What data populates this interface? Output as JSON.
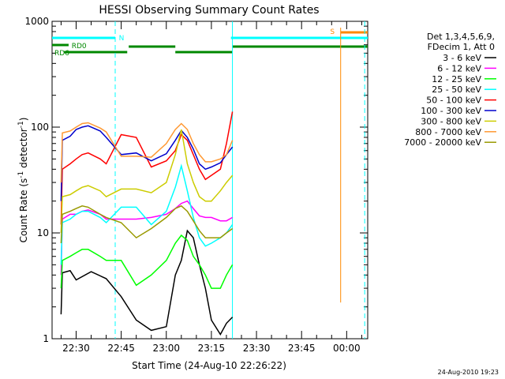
{
  "chart_data": {
    "type": "line",
    "title": "HESSI Observing Summary Count Rates",
    "xlabel": "Start Time (24-Aug-10 22:26:22)",
    "ylabel": "Count Rate (s⁻¹ detector⁻¹)",
    "ylabel_parts": [
      "Count Rate (s",
      "-1",
      " detector",
      "-1",
      ")"
    ],
    "yscale": "log",
    "ylim": [
      1,
      1000
    ],
    "y_ticks": [
      1,
      10,
      100,
      1000
    ],
    "y_tick_labels": [
      "1",
      "10",
      "100",
      "1000"
    ],
    "x_ticks_min": [
      0,
      15,
      30,
      45,
      60,
      75,
      90
    ],
    "x_tick_labels": [
      "22:30",
      "22:45",
      "23:00",
      "23:15",
      "23:30",
      "23:45",
      "00:00"
    ],
    "x_range_min": [
      -8,
      97
    ],
    "legend_header": [
      "Det 1,3,4,5,6,9,",
      "FDecim 1, Att 0"
    ],
    "series": [
      {
        "name": "3 - 6 keV",
        "color": "#000000",
        "points": [
          [
            -5,
            1.7
          ],
          [
            -4.6,
            4.2
          ],
          [
            -2,
            4.4
          ],
          [
            0,
            3.6
          ],
          [
            5,
            4.3
          ],
          [
            10,
            3.7
          ],
          [
            15,
            2.5
          ],
          [
            20,
            1.5
          ],
          [
            25,
            1.2
          ],
          [
            30,
            1.3
          ],
          [
            33,
            4
          ],
          [
            35,
            5.5
          ],
          [
            37,
            10.5
          ],
          [
            39,
            9
          ],
          [
            41,
            5
          ],
          [
            43,
            3
          ],
          [
            45,
            1.5
          ],
          [
            48,
            1.1
          ],
          [
            50,
            1.4
          ],
          [
            52,
            1.6
          ]
        ]
      },
      {
        "name": "6 - 12 keV",
        "color": "#ff00ff",
        "points": [
          [
            -5,
            4
          ],
          [
            -4.6,
            13.5
          ],
          [
            -2,
            15
          ],
          [
            0,
            15
          ],
          [
            2,
            16
          ],
          [
            4,
            16.5
          ],
          [
            8,
            15
          ],
          [
            10,
            13.5
          ],
          [
            15,
            13.5
          ],
          [
            20,
            13.5
          ],
          [
            25,
            14
          ],
          [
            30,
            15
          ],
          [
            33,
            17
          ],
          [
            35,
            19
          ],
          [
            37,
            20
          ],
          [
            39,
            17
          ],
          [
            41,
            14.5
          ],
          [
            43,
            14
          ],
          [
            45,
            14
          ],
          [
            48,
            13
          ],
          [
            50,
            13
          ],
          [
            52,
            14
          ]
        ]
      },
      {
        "name": "12 - 25 keV",
        "color": "#00ff00",
        "points": [
          [
            -5,
            3
          ],
          [
            -4.6,
            5.5
          ],
          [
            -2,
            6
          ],
          [
            0,
            6.5
          ],
          [
            2,
            7
          ],
          [
            4,
            7
          ],
          [
            8,
            6
          ],
          [
            10,
            5.5
          ],
          [
            15,
            5.5
          ],
          [
            20,
            3.2
          ],
          [
            25,
            4
          ],
          [
            30,
            5.5
          ],
          [
            33,
            8
          ],
          [
            35,
            9.5
          ],
          [
            37,
            8.5
          ],
          [
            39,
            6
          ],
          [
            41,
            5
          ],
          [
            43,
            4
          ],
          [
            45,
            3
          ],
          [
            48,
            3
          ],
          [
            50,
            4
          ],
          [
            52,
            5
          ]
        ]
      },
      {
        "name": "25 - 50 keV",
        "color": "#00ffff",
        "points": [
          [
            -5,
            5
          ],
          [
            -4.6,
            12.5
          ],
          [
            -2,
            13.5
          ],
          [
            0,
            15
          ],
          [
            2,
            16
          ],
          [
            4,
            16
          ],
          [
            8,
            14
          ],
          [
            10,
            12.5
          ],
          [
            15,
            17.5
          ],
          [
            20,
            17.5
          ],
          [
            25,
            12
          ],
          [
            30,
            16
          ],
          [
            33,
            27
          ],
          [
            35,
            43
          ],
          [
            37,
            25
          ],
          [
            39,
            14
          ],
          [
            41,
            9
          ],
          [
            43,
            7.5
          ],
          [
            45,
            8
          ],
          [
            48,
            9
          ],
          [
            50,
            10
          ],
          [
            52,
            12
          ]
        ]
      },
      {
        "name": "50 - 100 keV",
        "color": "#ff0000",
        "points": [
          [
            -5,
            12
          ],
          [
            -4.6,
            40
          ],
          [
            -2,
            45
          ],
          [
            0,
            50
          ],
          [
            2,
            55
          ],
          [
            4,
            57
          ],
          [
            8,
            50
          ],
          [
            10,
            45
          ],
          [
            15,
            85
          ],
          [
            20,
            80
          ],
          [
            25,
            42
          ],
          [
            30,
            48
          ],
          [
            33,
            60
          ],
          [
            35,
            85
          ],
          [
            37,
            75
          ],
          [
            39,
            55
          ],
          [
            41,
            40
          ],
          [
            43,
            32
          ],
          [
            45,
            35
          ],
          [
            48,
            40
          ],
          [
            50,
            70
          ],
          [
            52,
            140
          ]
        ]
      },
      {
        "name": "100 - 300 keV",
        "color": "#0000cc",
        "points": [
          [
            -5,
            20
          ],
          [
            -4.6,
            75
          ],
          [
            -2,
            82
          ],
          [
            0,
            95
          ],
          [
            2,
            100
          ],
          [
            4,
            103
          ],
          [
            8,
            92
          ],
          [
            10,
            80
          ],
          [
            15,
            55
          ],
          [
            20,
            57
          ],
          [
            25,
            48
          ],
          [
            30,
            56
          ],
          [
            33,
            75
          ],
          [
            35,
            93
          ],
          [
            37,
            80
          ],
          [
            39,
            62
          ],
          [
            41,
            45
          ],
          [
            43,
            40
          ],
          [
            45,
            42
          ],
          [
            48,
            46
          ],
          [
            50,
            55
          ],
          [
            52,
            65
          ]
        ]
      },
      {
        "name": "300 - 800 keV",
        "color": "#cccc00",
        "points": [
          [
            -5,
            10
          ],
          [
            -4.6,
            22
          ],
          [
            -2,
            23
          ],
          [
            0,
            25
          ],
          [
            2,
            27
          ],
          [
            4,
            28
          ],
          [
            8,
            25
          ],
          [
            10,
            22
          ],
          [
            15,
            26
          ],
          [
            20,
            26
          ],
          [
            25,
            24
          ],
          [
            30,
            30
          ],
          [
            33,
            55
          ],
          [
            35,
            95
          ],
          [
            37,
            45
          ],
          [
            39,
            30
          ],
          [
            41,
            22
          ],
          [
            43,
            20
          ],
          [
            45,
            20
          ],
          [
            48,
            25
          ],
          [
            50,
            30
          ],
          [
            52,
            35
          ]
        ]
      },
      {
        "name": "800 - 7000 keV",
        "color": "#ff9933",
        "points": [
          [
            -5,
            30
          ],
          [
            -4.6,
            88
          ],
          [
            -2,
            92
          ],
          [
            0,
            100
          ],
          [
            2,
            108
          ],
          [
            4,
            110
          ],
          [
            8,
            98
          ],
          [
            10,
            90
          ],
          [
            15,
            53
          ],
          [
            20,
            53
          ],
          [
            25,
            52
          ],
          [
            30,
            70
          ],
          [
            33,
            95
          ],
          [
            35,
            108
          ],
          [
            37,
            95
          ],
          [
            39,
            70
          ],
          [
            41,
            55
          ],
          [
            43,
            47
          ],
          [
            45,
            47
          ],
          [
            48,
            50
          ],
          [
            50,
            55
          ],
          [
            52,
            75
          ]
        ]
      },
      {
        "name": "7000 - 20000 keV",
        "color": "#999900",
        "points": [
          [
            -5,
            8
          ],
          [
            -4.6,
            15
          ],
          [
            -2,
            16
          ],
          [
            0,
            17
          ],
          [
            2,
            18
          ],
          [
            4,
            17.5
          ],
          [
            8,
            15
          ],
          [
            10,
            14
          ],
          [
            15,
            12.5
          ],
          [
            20,
            9
          ],
          [
            25,
            11
          ],
          [
            30,
            14
          ],
          [
            33,
            17
          ],
          [
            35,
            18
          ],
          [
            37,
            16
          ],
          [
            39,
            13
          ],
          [
            41,
            10.5
          ],
          [
            43,
            9
          ],
          [
            45,
            9
          ],
          [
            48,
            9
          ],
          [
            50,
            10
          ],
          [
            52,
            11
          ]
        ]
      }
    ],
    "markers": [
      {
        "label": "N",
        "type": "vertical-dashed",
        "x_min": 13,
        "color": "#00ffff"
      },
      {
        "label": "S",
        "type": "vertical-line",
        "x_min": 88,
        "color": "#ff8800"
      }
    ],
    "top_status": [
      {
        "label": "RD0",
        "color": "#008800"
      },
      {
        "label": "RD6",
        "color": "#008800"
      },
      {
        "label": "N",
        "color": "#00ffff"
      },
      {
        "label": "S",
        "color": "#ff8800"
      }
    ],
    "grid": false,
    "legend_placement": "right"
  },
  "timestamp": "24-Aug-2010 19:23"
}
